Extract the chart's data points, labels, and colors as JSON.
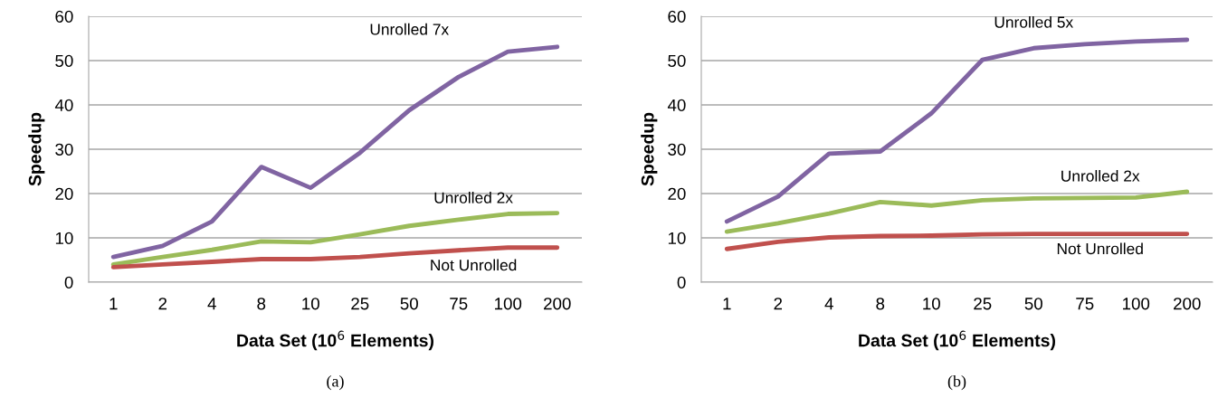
{
  "chart_data": [
    {
      "type": "line",
      "categories": [
        "1",
        "2",
        "4",
        "8",
        "10",
        "25",
        "50",
        "75",
        "100",
        "200"
      ],
      "xlabel": "Data Set (10$^{6}$ Elements)",
      "ylabel": "Speedup",
      "ylim": [
        0,
        60
      ],
      "yticks": [
        0,
        10,
        20,
        30,
        40,
        50,
        60
      ],
      "grid": "y",
      "legend": false,
      "annotations": [
        "(a)"
      ],
      "series": [
        {
          "name": "Unrolled 7x",
          "color": "#8064a2",
          "values": [
            5.7,
            8.2,
            13.7,
            26,
            21.3,
            29.2,
            38.8,
            46.3,
            52,
            53.1
          ]
        },
        {
          "name": "Unrolled 2x",
          "color": "#9bbb59",
          "values": [
            4.0,
            5.7,
            7.3,
            9.2,
            9.0,
            10.8,
            12.7,
            14.1,
            15.4,
            15.6
          ]
        },
        {
          "name": "Not Unrolled",
          "color": "#c0504d",
          "values": [
            3.4,
            4.0,
            4.6,
            5.2,
            5.2,
            5.7,
            6.5,
            7.2,
            7.8,
            7.8
          ]
        }
      ]
    },
    {
      "type": "line",
      "categories": [
        "1",
        "2",
        "4",
        "8",
        "10",
        "25",
        "50",
        "75",
        "100",
        "200"
      ],
      "xlabel": "Data Set (10$^{6}$ Elements)",
      "ylabel": "Speedup",
      "ylim": [
        0,
        60
      ],
      "yticks": [
        0,
        10,
        20,
        30,
        40,
        50,
        60
      ],
      "grid": "y",
      "legend": false,
      "annotations": [
        "(b)"
      ],
      "series": [
        {
          "name": "Unrolled 5x",
          "color": "#8064a2",
          "values": [
            13.7,
            19.3,
            29.0,
            29.5,
            38.1,
            50.2,
            52.8,
            53.7,
            54.3,
            54.7
          ]
        },
        {
          "name": "Unrolled 2x",
          "color": "#9bbb59",
          "values": [
            11.4,
            13.3,
            15.5,
            18.1,
            17.3,
            18.5,
            18.9,
            19.0,
            19.1,
            20.4
          ]
        },
        {
          "name": "Not Unrolled",
          "color": "#c0504d",
          "values": [
            7.5,
            9.1,
            10.1,
            10.4,
            10.5,
            10.8,
            10.9,
            10.9,
            10.9,
            10.9
          ]
        }
      ]
    }
  ]
}
